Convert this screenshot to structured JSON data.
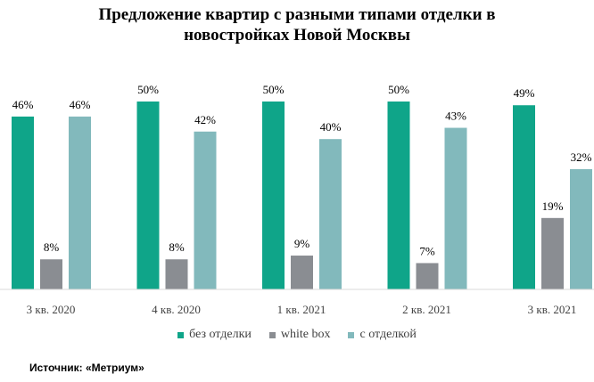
{
  "chart_data": {
    "type": "bar",
    "title": "Предложение квартир с разными типами отделки в\nновостройках Новой Москвы",
    "categories": [
      "3 кв. 2020",
      "4 кв. 2020",
      "1 кв. 2021",
      "2 кв. 2021",
      "3 кв. 2021"
    ],
    "series": [
      {
        "name": "без отделки",
        "color": "#0fa589",
        "values": [
          46,
          50,
          50,
          50,
          49
        ],
        "labels": [
          "46%",
          "50%",
          "50%",
          "50%",
          "49%"
        ]
      },
      {
        "name": "white box",
        "color": "#8a8d92",
        "values": [
          8,
          8,
          9,
          7,
          19
        ],
        "labels": [
          "8%",
          "8%",
          "9%",
          "7%",
          "19%"
        ]
      },
      {
        "name": "с отделкой",
        "color": "#82b9bc",
        "values": [
          46,
          42,
          40,
          43,
          32
        ],
        "labels": [
          "46%",
          "42%",
          "40%",
          "43%",
          "32%"
        ]
      }
    ],
    "ylim": [
      0,
      50
    ],
    "grid": false,
    "legend_position": "bottom"
  },
  "source": "Источник: «Метриум»"
}
